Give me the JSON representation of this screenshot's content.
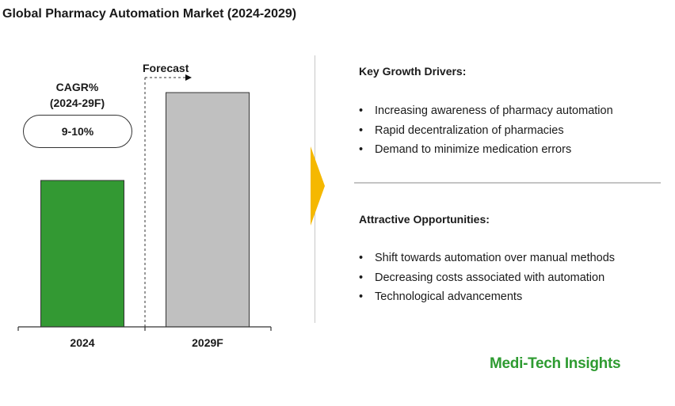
{
  "title": "Global Pharmacy Automation Market (2024-2029)",
  "cagr": {
    "label_line1": "CAGR%",
    "label_line2": "(2024-29F)",
    "value": "9-10%"
  },
  "forecast_label": "Forecast",
  "chart_data": {
    "type": "bar",
    "categories": [
      "2024",
      "2029F"
    ],
    "values": [
      1.0,
      1.6
    ],
    "title": "",
    "xlabel": "",
    "ylabel": "",
    "colors": [
      "#339933",
      "#c0c0c0"
    ],
    "grid": false
  },
  "drivers": {
    "title": "Key Growth Drivers:",
    "items": [
      "Increasing awareness of pharmacy automation",
      "Rapid decentralization of pharmacies",
      "Demand to minimize medication errors"
    ]
  },
  "opportunities": {
    "title": "Attractive Opportunities:",
    "items": [
      "Shift towards automation over manual methods",
      "Decreasing costs associated with automation",
      "Technological advancements"
    ]
  },
  "brand": "Medi-Tech Insights",
  "colors": {
    "accent_arrow": "#f5b800",
    "brand_green": "#2e9b31"
  }
}
